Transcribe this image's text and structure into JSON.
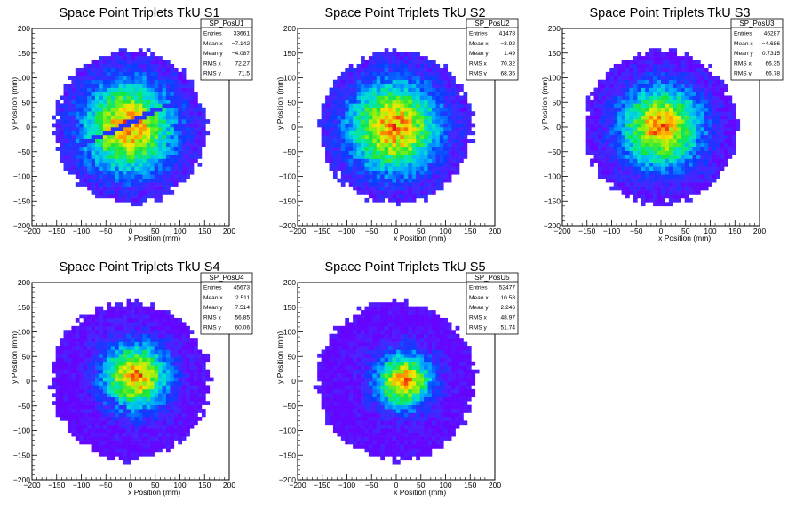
{
  "chart_data": [
    {
      "type": "heatmap",
      "title": "Space Point Triplets TkU S1",
      "histogram_name": "SP_PosU1",
      "xlabel": "x Position (mm)",
      "ylabel": "y Position (mm)",
      "xlim": [
        -200,
        200
      ],
      "ylim": [
        -200,
        200
      ],
      "x_ticks": [
        "−200",
        "−150",
        "−100",
        "−50",
        "0",
        "50",
        "100",
        "150",
        "200"
      ],
      "y_ticks": [
        "−200",
        "−150",
        "−100",
        "−50",
        "0",
        "50",
        "100",
        "150",
        "200"
      ],
      "stats": [
        {
          "label": "Entries",
          "value": "33661"
        },
        {
          "label": "Mean x",
          "value": "−7.142"
        },
        {
          "label": "Mean y",
          "value": "−4.087"
        },
        {
          "label": "RMS x",
          "value": "72.27"
        },
        {
          "label": "RMS y",
          "value": "71.5"
        }
      ],
      "footprint_radius_mm": 155,
      "core_center_mm": [
        -5,
        0
      ],
      "core_sigma_mm": 70,
      "gap": {
        "from_mm": [
          -150,
          -60
        ],
        "to_mm": [
          150,
          80
        ]
      },
      "bin_size_mm": 8
    },
    {
      "type": "heatmap",
      "title": "Space Point Triplets TkU S2",
      "histogram_name": "SP_PosU2",
      "xlabel": "x Position (mm)",
      "ylabel": "y Position (mm)",
      "xlim": [
        -200,
        200
      ],
      "ylim": [
        -200,
        200
      ],
      "x_ticks": [
        "−200",
        "−150",
        "−100",
        "−50",
        "0",
        "50",
        "100",
        "150",
        "200"
      ],
      "y_ticks": [
        "−200",
        "−150",
        "−100",
        "−50",
        "0",
        "50",
        "100",
        "150",
        "200"
      ],
      "stats": [
        {
          "label": "Entries",
          "value": "41478"
        },
        {
          "label": "Mean x",
          "value": "−3.92"
        },
        {
          "label": "Mean y",
          "value": "1.49"
        },
        {
          "label": "RMS x",
          "value": "70.32"
        },
        {
          "label": "RMS y",
          "value": "68.35"
        }
      ],
      "footprint_radius_mm": 155,
      "core_center_mm": [
        -5,
        0
      ],
      "core_sigma_mm": 70,
      "gap": null,
      "bin_size_mm": 8
    },
    {
      "type": "heatmap",
      "title": "Space Point Triplets TkU S3",
      "histogram_name": "SP_PosU3",
      "xlabel": "x Position (mm)",
      "ylabel": "y Position (mm)",
      "xlim": [
        -200,
        200
      ],
      "ylim": [
        -200,
        200
      ],
      "x_ticks": [
        "−200",
        "−150",
        "−100",
        "−50",
        "0",
        "50",
        "100",
        "150",
        "200"
      ],
      "y_ticks": [
        "−200",
        "−150",
        "−100",
        "−50",
        "0",
        "50",
        "100",
        "150",
        "200"
      ],
      "stats": [
        {
          "label": "Entries",
          "value": "46287"
        },
        {
          "label": "Mean x",
          "value": "−4.686"
        },
        {
          "label": "Mean y",
          "value": "0.7315"
        },
        {
          "label": "RMS x",
          "value": "66.35"
        },
        {
          "label": "RMS y",
          "value": "66.78"
        }
      ],
      "footprint_radius_mm": 155,
      "core_center_mm": [
        0,
        0
      ],
      "core_sigma_mm": 62,
      "gap": null,
      "bin_size_mm": 8
    },
    {
      "type": "heatmap",
      "title": "Space Point Triplets TkU S4",
      "histogram_name": "SP_PosU4",
      "xlabel": "x Position (mm)",
      "ylabel": "y Position (mm)",
      "xlim": [
        -200,
        200
      ],
      "ylim": [
        -200,
        200
      ],
      "x_ticks": [
        "−200",
        "−150",
        "−100",
        "−50",
        "0",
        "50",
        "100",
        "150",
        "200"
      ],
      "y_ticks": [
        "−200",
        "−150",
        "−100",
        "−50",
        "0",
        "50",
        "100",
        "150",
        "200"
      ],
      "stats": [
        {
          "label": "Entries",
          "value": "45673"
        },
        {
          "label": "Mean x",
          "value": "2.511"
        },
        {
          "label": "Mean y",
          "value": "7.514"
        },
        {
          "label": "RMS x",
          "value": "56.85"
        },
        {
          "label": "RMS y",
          "value": "60.06"
        }
      ],
      "footprint_radius_mm": 160,
      "core_center_mm": [
        10,
        10
      ],
      "core_sigma_mm": 50,
      "gap": {
        "from_mm": [
          -95,
          -2
        ],
        "to_mm": [
          -5,
          -60
        ]
      },
      "bin_size_mm": 8
    },
    {
      "type": "heatmap",
      "title": "Space Point Triplets TkU S5",
      "histogram_name": "SP_PosU5",
      "xlabel": "x Position (mm)",
      "ylabel": "y Position (mm)",
      "xlim": [
        -200,
        200
      ],
      "ylim": [
        -200,
        200
      ],
      "x_ticks": [
        "−200",
        "−150",
        "−100",
        "−50",
        "0",
        "50",
        "100",
        "150",
        "200"
      ],
      "y_ticks": [
        "−200",
        "−150",
        "−100",
        "−50",
        "0",
        "50",
        "100",
        "150",
        "200"
      ],
      "stats": [
        {
          "label": "Entries",
          "value": "52477"
        },
        {
          "label": "Mean x",
          "value": "10.58"
        },
        {
          "label": "Mean y",
          "value": "2.246"
        },
        {
          "label": "RMS x",
          "value": "48.97"
        },
        {
          "label": "RMS y",
          "value": "51.74"
        }
      ],
      "footprint_radius_mm": 160,
      "core_center_mm": [
        15,
        2
      ],
      "core_sigma_mm": 42,
      "gap": null,
      "bin_size_mm": 8
    }
  ]
}
